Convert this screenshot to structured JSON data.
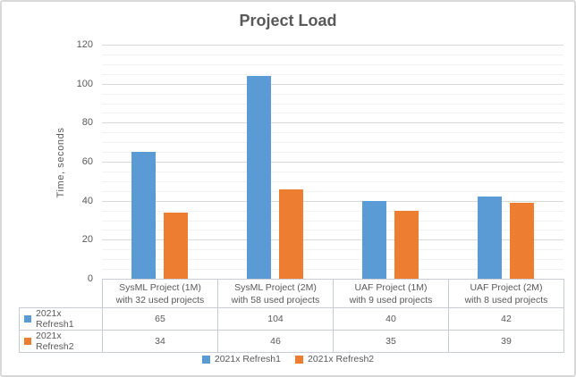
{
  "chart_data": {
    "type": "bar",
    "title": "Project Load",
    "xlabel": "",
    "ylabel": "Time, seconds",
    "categories": [
      "SysML Project (1M) with 32 used projects",
      "SysML Project (2M) with 58 used projects",
      "UAF Project (1M) with 9 used projects",
      "UAF Project (2M) with 8 used projects"
    ],
    "categories_wrapped": [
      [
        "SysML Project (1M)",
        "with 32 used projects"
      ],
      [
        "SysML Project (2M)",
        "with 58 used projects"
      ],
      [
        "UAF Project (1M)",
        "with 9 used projects"
      ],
      [
        "UAF Project (2M)",
        "with 8 used projects"
      ]
    ],
    "series": [
      {
        "name": "2021x Refresh1",
        "color": "#5B9BD5",
        "values": [
          65,
          104,
          40,
          42
        ]
      },
      {
        "name": "2021x Refresh2",
        "color": "#ED7D31",
        "values": [
          34,
          46,
          35,
          39
        ]
      }
    ],
    "ylim": [
      0,
      120
    ],
    "y_major_unit": 20,
    "y_minor_unit": 5,
    "y_ticks": [
      0,
      20,
      40,
      60,
      80,
      100,
      120
    ],
    "grid": true,
    "legend_position": "bottom",
    "has_data_table": true
  },
  "colors": {
    "series1": "#5B9BD5",
    "series2": "#ED7D31",
    "text": "#595959",
    "major_gridline": "#D9D9D9",
    "minor_gridline": "#F2F2F2",
    "chart_border": "#D9D9D9",
    "table_border": "#C8CDD4",
    "background": "#FFFFFF"
  }
}
